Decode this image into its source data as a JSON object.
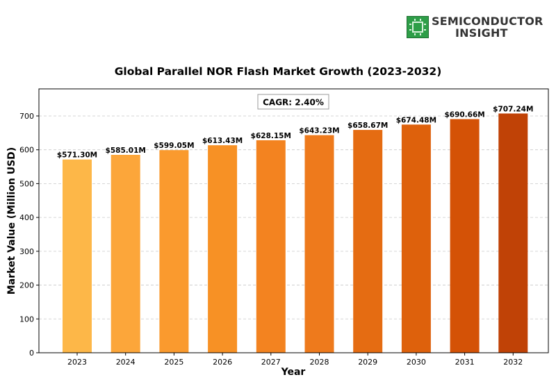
{
  "brand": {
    "line1": "SEMICONDUCTOR",
    "line2": "INSIGHT",
    "logo_icon": "chip-icon",
    "logo_color": "#2e9e48"
  },
  "chart_data": {
    "type": "bar",
    "title": "Global Parallel NOR Flash Market Growth (2023-2032)",
    "xlabel": "Year",
    "ylabel": "Market Value (Million USD)",
    "categories": [
      "2023",
      "2024",
      "2025",
      "2026",
      "2027",
      "2028",
      "2029",
      "2030",
      "2031",
      "2032"
    ],
    "values": [
      571.3,
      585.01,
      599.05,
      613.43,
      628.15,
      643.23,
      658.67,
      674.48,
      690.66,
      707.24
    ],
    "value_labels": [
      "$571.30M",
      "$585.01M",
      "$599.05M",
      "$613.43M",
      "$628.15M",
      "$643.23M",
      "$658.67M",
      "$674.48M",
      "$690.66M",
      "$707.24M"
    ],
    "bar_colors": [
      "#fdb748",
      "#fca63a",
      "#fa9a2e",
      "#f79125",
      "#f38320",
      "#ee7a1c",
      "#e56c12",
      "#de610c",
      "#d45206",
      "#c04206"
    ],
    "ylim": [
      0,
      780
    ],
    "yticks": [
      0,
      100,
      200,
      300,
      400,
      500,
      600,
      700
    ],
    "grid": true,
    "annotation": "CAGR: 2.40%"
  }
}
